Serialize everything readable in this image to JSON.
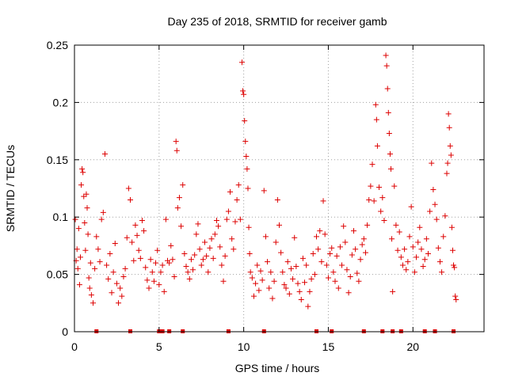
{
  "chart_data": {
    "type": "scatter",
    "title": "Day 235 of 2018, SRMTID for receiver gamb",
    "xlabel": "GPS time / hours",
    "ylabel": "SRMTID / TECUs",
    "xlim": [
      0,
      24.2
    ],
    "ylim": [
      0,
      0.25
    ],
    "xticks": [
      0,
      5,
      10,
      15,
      20
    ],
    "xtick_labels": [
      "0",
      "5",
      "10",
      "15",
      "20"
    ],
    "yticks": [
      0,
      0.05,
      0.1,
      0.15,
      0.2,
      0.25
    ],
    "ytick_labels": [
      "0",
      "0.05",
      "0.1",
      "0.15",
      "0.2",
      "0.25"
    ],
    "grid": true,
    "marker": "+",
    "color": "#dd0000",
    "series": [
      {
        "name": "SRMTID",
        "points": [
          [
            0.05,
            0.098
          ],
          [
            0.1,
            0.062
          ],
          [
            0.15,
            0.072
          ],
          [
            0.2,
            0.055
          ],
          [
            0.25,
            0.09
          ],
          [
            0.3,
            0.041
          ],
          [
            0.35,
            0.065
          ],
          [
            0.4,
            0.128
          ],
          [
            0.45,
            0.142
          ],
          [
            0.5,
            0.139
          ],
          [
            0.55,
            0.118
          ],
          [
            0.6,
            0.095
          ],
          [
            0.65,
            0.071
          ],
          [
            0.7,
            0.12
          ],
          [
            0.75,
            0.108
          ],
          [
            0.8,
            0.085
          ],
          [
            0.85,
            0.047
          ],
          [
            0.9,
            0.038
          ],
          [
            0.95,
            0.06
          ],
          [
            1.0,
            0.032
          ],
          [
            1.1,
            0.025
          ],
          [
            1.2,
            0.055
          ],
          [
            1.3,
            0.083
          ],
          [
            1.4,
            0.072
          ],
          [
            1.5,
            0.061
          ],
          [
            1.6,
            0.098
          ],
          [
            1.7,
            0.104
          ],
          [
            1.8,
            0.155
          ],
          [
            1.9,
            0.058
          ],
          [
            2.0,
            0.046
          ],
          [
            2.1,
            0.068
          ],
          [
            2.2,
            0.034
          ],
          [
            2.3,
            0.052
          ],
          [
            2.4,
            0.077
          ],
          [
            2.5,
            0.042
          ],
          [
            2.6,
            0.025
          ],
          [
            2.7,
            0.038
          ],
          [
            2.8,
            0.031
          ],
          [
            2.9,
            0.048
          ],
          [
            3.0,
            0.055
          ],
          [
            3.1,
            0.082
          ],
          [
            3.2,
            0.125
          ],
          [
            3.3,
            0.115
          ],
          [
            3.4,
            0.078
          ],
          [
            3.5,
            0.062
          ],
          [
            3.6,
            0.093
          ],
          [
            3.7,
            0.084
          ],
          [
            3.8,
            0.071
          ],
          [
            3.9,
            0.064
          ],
          [
            4.0,
            0.097
          ],
          [
            4.1,
            0.088
          ],
          [
            4.2,
            0.056
          ],
          [
            4.3,
            0.045
          ],
          [
            4.4,
            0.038
          ],
          [
            4.5,
            0.063
          ],
          [
            4.6,
            0.052
          ],
          [
            4.7,
            0.044
          ],
          [
            4.8,
            0.06
          ],
          [
            4.9,
            0.071
          ],
          [
            5.0,
            0.041
          ],
          [
            5.1,
            0.052
          ],
          [
            5.2,
            0.058
          ],
          [
            5.3,
            0.035
          ],
          [
            5.4,
            0.098
          ],
          [
            5.5,
            0.062
          ],
          [
            5.6,
            0.06
          ],
          [
            5.7,
            0.075
          ],
          [
            5.8,
            0.063
          ],
          [
            5.9,
            0.048
          ],
          [
            6.0,
            0.166
          ],
          [
            6.05,
            0.158
          ],
          [
            6.1,
            0.108
          ],
          [
            6.2,
            0.117
          ],
          [
            6.3,
            0.092
          ],
          [
            6.4,
            0.128
          ],
          [
            6.5,
            0.068
          ],
          [
            6.6,
            0.057
          ],
          [
            6.7,
            0.052
          ],
          [
            6.8,
            0.046
          ],
          [
            6.9,
            0.063
          ],
          [
            7.0,
            0.054
          ],
          [
            7.1,
            0.067
          ],
          [
            7.2,
            0.085
          ],
          [
            7.3,
            0.094
          ],
          [
            7.4,
            0.072
          ],
          [
            7.5,
            0.058
          ],
          [
            7.6,
            0.063
          ],
          [
            7.7,
            0.078
          ],
          [
            7.8,
            0.066
          ],
          [
            7.9,
            0.052
          ],
          [
            8.0,
            0.073
          ],
          [
            8.1,
            0.081
          ],
          [
            8.2,
            0.064
          ],
          [
            8.3,
            0.085
          ],
          [
            8.4,
            0.097
          ],
          [
            8.5,
            0.092
          ],
          [
            8.6,
            0.074
          ],
          [
            8.7,
            0.058
          ],
          [
            8.8,
            0.044
          ],
          [
            8.9,
            0.066
          ],
          [
            9.0,
            0.098
          ],
          [
            9.1,
            0.105
          ],
          [
            9.2,
            0.122
          ],
          [
            9.3,
            0.081
          ],
          [
            9.4,
            0.072
          ],
          [
            9.5,
            0.096
          ],
          [
            9.6,
            0.115
          ],
          [
            9.7,
            0.128
          ],
          [
            9.8,
            0.098
          ],
          [
            9.9,
            0.235
          ],
          [
            9.95,
            0.21
          ],
          [
            10.0,
            0.207
          ],
          [
            10.05,
            0.184
          ],
          [
            10.1,
            0.166
          ],
          [
            10.15,
            0.153
          ],
          [
            10.2,
            0.142
          ],
          [
            10.25,
            0.125
          ],
          [
            10.3,
            0.091
          ],
          [
            10.35,
            0.068
          ],
          [
            10.4,
            0.052
          ],
          [
            10.5,
            0.047
          ],
          [
            10.6,
            0.031
          ],
          [
            10.7,
            0.042
          ],
          [
            10.8,
            0.058
          ],
          [
            10.9,
            0.036
          ],
          [
            11.0,
            0.053
          ],
          [
            11.1,
            0.045
          ],
          [
            11.2,
            0.123
          ],
          [
            11.3,
            0.083
          ],
          [
            11.4,
            0.061
          ],
          [
            11.5,
            0.038
          ],
          [
            11.6,
            0.052
          ],
          [
            11.7,
            0.029
          ],
          [
            11.8,
            0.044
          ],
          [
            11.9,
            0.078
          ],
          [
            12.0,
            0.115
          ],
          [
            12.1,
            0.093
          ],
          [
            12.2,
            0.069
          ],
          [
            12.3,
            0.052
          ],
          [
            12.4,
            0.041
          ],
          [
            12.5,
            0.038
          ],
          [
            12.6,
            0.061
          ],
          [
            12.7,
            0.033
          ],
          [
            12.8,
            0.055
          ],
          [
            12.9,
            0.046
          ],
          [
            13.0,
            0.082
          ],
          [
            13.1,
            0.057
          ],
          [
            13.2,
            0.042
          ],
          [
            13.3,
            0.035
          ],
          [
            13.4,
            0.028
          ],
          [
            13.5,
            0.064
          ],
          [
            13.6,
            0.043
          ],
          [
            13.7,
            0.058
          ],
          [
            13.8,
            0.022
          ],
          [
            13.9,
            0.035
          ],
          [
            14.0,
            0.046
          ],
          [
            14.1,
            0.068
          ],
          [
            14.2,
            0.05
          ],
          [
            14.3,
            0.083
          ],
          [
            14.4,
            0.072
          ],
          [
            14.5,
            0.088
          ],
          [
            14.6,
            0.061
          ],
          [
            14.7,
            0.114
          ],
          [
            14.8,
            0.085
          ],
          [
            14.9,
            0.058
          ],
          [
            15.0,
            0.047
          ],
          [
            15.1,
            0.068
          ],
          [
            15.2,
            0.073
          ],
          [
            15.3,
            0.052
          ],
          [
            15.4,
            0.044
          ],
          [
            15.5,
            0.066
          ],
          [
            15.6,
            0.038
          ],
          [
            15.7,
            0.074
          ],
          [
            15.8,
            0.058
          ],
          [
            15.9,
            0.092
          ],
          [
            16.0,
            0.078
          ],
          [
            16.1,
            0.054
          ],
          [
            16.2,
            0.034
          ],
          [
            16.3,
            0.048
          ],
          [
            16.4,
            0.067
          ],
          [
            16.5,
            0.088
          ],
          [
            16.6,
            0.072
          ],
          [
            16.7,
            0.051
          ],
          [
            16.8,
            0.044
          ],
          [
            16.9,
            0.063
          ],
          [
            17.0,
            0.076
          ],
          [
            17.1,
            0.081
          ],
          [
            17.2,
            0.069
          ],
          [
            17.3,
            0.093
          ],
          [
            17.4,
            0.115
          ],
          [
            17.5,
            0.127
          ],
          [
            17.6,
            0.146
          ],
          [
            17.7,
            0.114
          ],
          [
            17.8,
            0.198
          ],
          [
            17.85,
            0.185
          ],
          [
            17.9,
            0.162
          ],
          [
            18.0,
            0.126
          ],
          [
            18.1,
            0.105
          ],
          [
            18.2,
            0.117
          ],
          [
            18.3,
            0.097
          ],
          [
            18.4,
            0.241
          ],
          [
            18.45,
            0.232
          ],
          [
            18.5,
            0.212
          ],
          [
            18.55,
            0.191
          ],
          [
            18.6,
            0.173
          ],
          [
            18.65,
            0.155
          ],
          [
            18.7,
            0.142
          ],
          [
            18.75,
            0.081
          ],
          [
            18.8,
            0.035
          ],
          [
            18.9,
            0.127
          ],
          [
            19.0,
            0.093
          ],
          [
            19.1,
            0.071
          ],
          [
            19.2,
            0.087
          ],
          [
            19.3,
            0.065
          ],
          [
            19.4,
            0.058
          ],
          [
            19.5,
            0.072
          ],
          [
            19.6,
            0.054
          ],
          [
            19.7,
            0.061
          ],
          [
            19.8,
            0.083
          ],
          [
            19.9,
            0.109
          ],
          [
            20.0,
            0.074
          ],
          [
            20.1,
            0.052
          ],
          [
            20.2,
            0.065
          ],
          [
            20.3,
            0.078
          ],
          [
            20.4,
            0.091
          ],
          [
            20.5,
            0.072
          ],
          [
            20.6,
            0.057
          ],
          [
            20.7,
            0.063
          ],
          [
            20.8,
            0.081
          ],
          [
            20.9,
            0.068
          ],
          [
            21.0,
            0.105
          ],
          [
            21.1,
            0.147
          ],
          [
            21.2,
            0.124
          ],
          [
            21.3,
            0.111
          ],
          [
            21.4,
            0.098
          ],
          [
            21.5,
            0.073
          ],
          [
            21.6,
            0.061
          ],
          [
            21.7,
            0.052
          ],
          [
            21.8,
            0.083
          ],
          [
            21.9,
            0.101
          ],
          [
            22.0,
            0.138
          ],
          [
            22.05,
            0.147
          ],
          [
            22.1,
            0.19
          ],
          [
            22.15,
            0.178
          ],
          [
            22.2,
            0.162
          ],
          [
            22.25,
            0.154
          ],
          [
            22.3,
            0.091
          ],
          [
            22.35,
            0.071
          ],
          [
            22.4,
            0.058
          ],
          [
            22.45,
            0.056
          ],
          [
            22.5,
            0.031
          ],
          [
            22.55,
            0.028
          ]
        ]
      }
    ],
    "gap_markers_x": [
      1.3,
      3.3,
      5.0,
      5.1,
      5.2,
      5.6,
      6.4,
      9.1,
      11.2,
      14.3,
      15.2,
      17.1,
      18.2,
      18.8,
      19.3,
      20.7,
      21.3,
      22.4
    ]
  }
}
